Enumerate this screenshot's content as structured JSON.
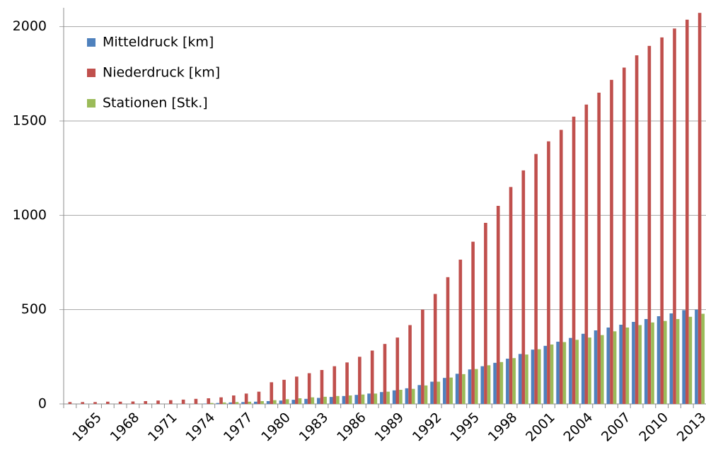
{
  "chart_data": {
    "type": "bar",
    "categories": [
      null,
      null,
      "1965",
      null,
      null,
      "1968",
      null,
      null,
      "1971",
      null,
      null,
      "1974",
      null,
      null,
      "1977",
      null,
      null,
      "1980",
      null,
      null,
      "1983",
      null,
      null,
      "1986",
      null,
      null,
      "1989",
      null,
      null,
      "1992",
      null,
      null,
      "1995",
      null,
      null,
      "1998",
      null,
      null,
      "2001",
      null,
      null,
      "2004",
      null,
      null,
      "2007",
      null,
      null,
      "2010",
      null,
      null,
      "2013"
    ],
    "series": [
      {
        "name": "Mitteldruck [km]",
        "color": "#4f81bd",
        "values": [
          0,
          0,
          0,
          0,
          0,
          0,
          0,
          0,
          0,
          0,
          0,
          2,
          5,
          8,
          10,
          12,
          15,
          18,
          22,
          27,
          32,
          37,
          42,
          48,
          55,
          63,
          72,
          83,
          100,
          118,
          138,
          160,
          183,
          200,
          218,
          240,
          265,
          288,
          308,
          330,
          350,
          372,
          390,
          405,
          420,
          435,
          450,
          465,
          480,
          497,
          500
        ]
      },
      {
        "name": "Niederdruck [km]",
        "color": "#c0504d",
        "values": [
          10,
          10,
          10,
          12,
          12,
          13,
          15,
          18,
          20,
          23,
          27,
          30,
          35,
          45,
          55,
          65,
          115,
          128,
          145,
          163,
          180,
          200,
          220,
          250,
          283,
          318,
          352,
          418,
          500,
          583,
          672,
          765,
          860,
          960,
          1050,
          1150,
          1238,
          1325,
          1392,
          1453,
          1523,
          1587,
          1650,
          1718,
          1783,
          1848,
          1898,
          1943,
          1990,
          2037,
          2073
        ]
      },
      {
        "name": "Stationen [Stk.]",
        "color": "#9bbb59",
        "values": [
          0,
          0,
          0,
          0,
          0,
          0,
          0,
          0,
          0,
          0,
          0,
          5,
          8,
          10,
          12,
          15,
          20,
          25,
          30,
          35,
          38,
          42,
          45,
          50,
          55,
          65,
          75,
          80,
          98,
          118,
          140,
          158,
          185,
          205,
          222,
          243,
          262,
          290,
          315,
          328,
          340,
          352,
          365,
          385,
          405,
          418,
          432,
          440,
          450,
          462,
          478
        ]
      }
    ],
    "ylim": [
      0,
      2100
    ],
    "yticks": [
      0,
      500,
      1000,
      1500,
      2000
    ],
    "grid": true,
    "legend": "upper-left"
  }
}
